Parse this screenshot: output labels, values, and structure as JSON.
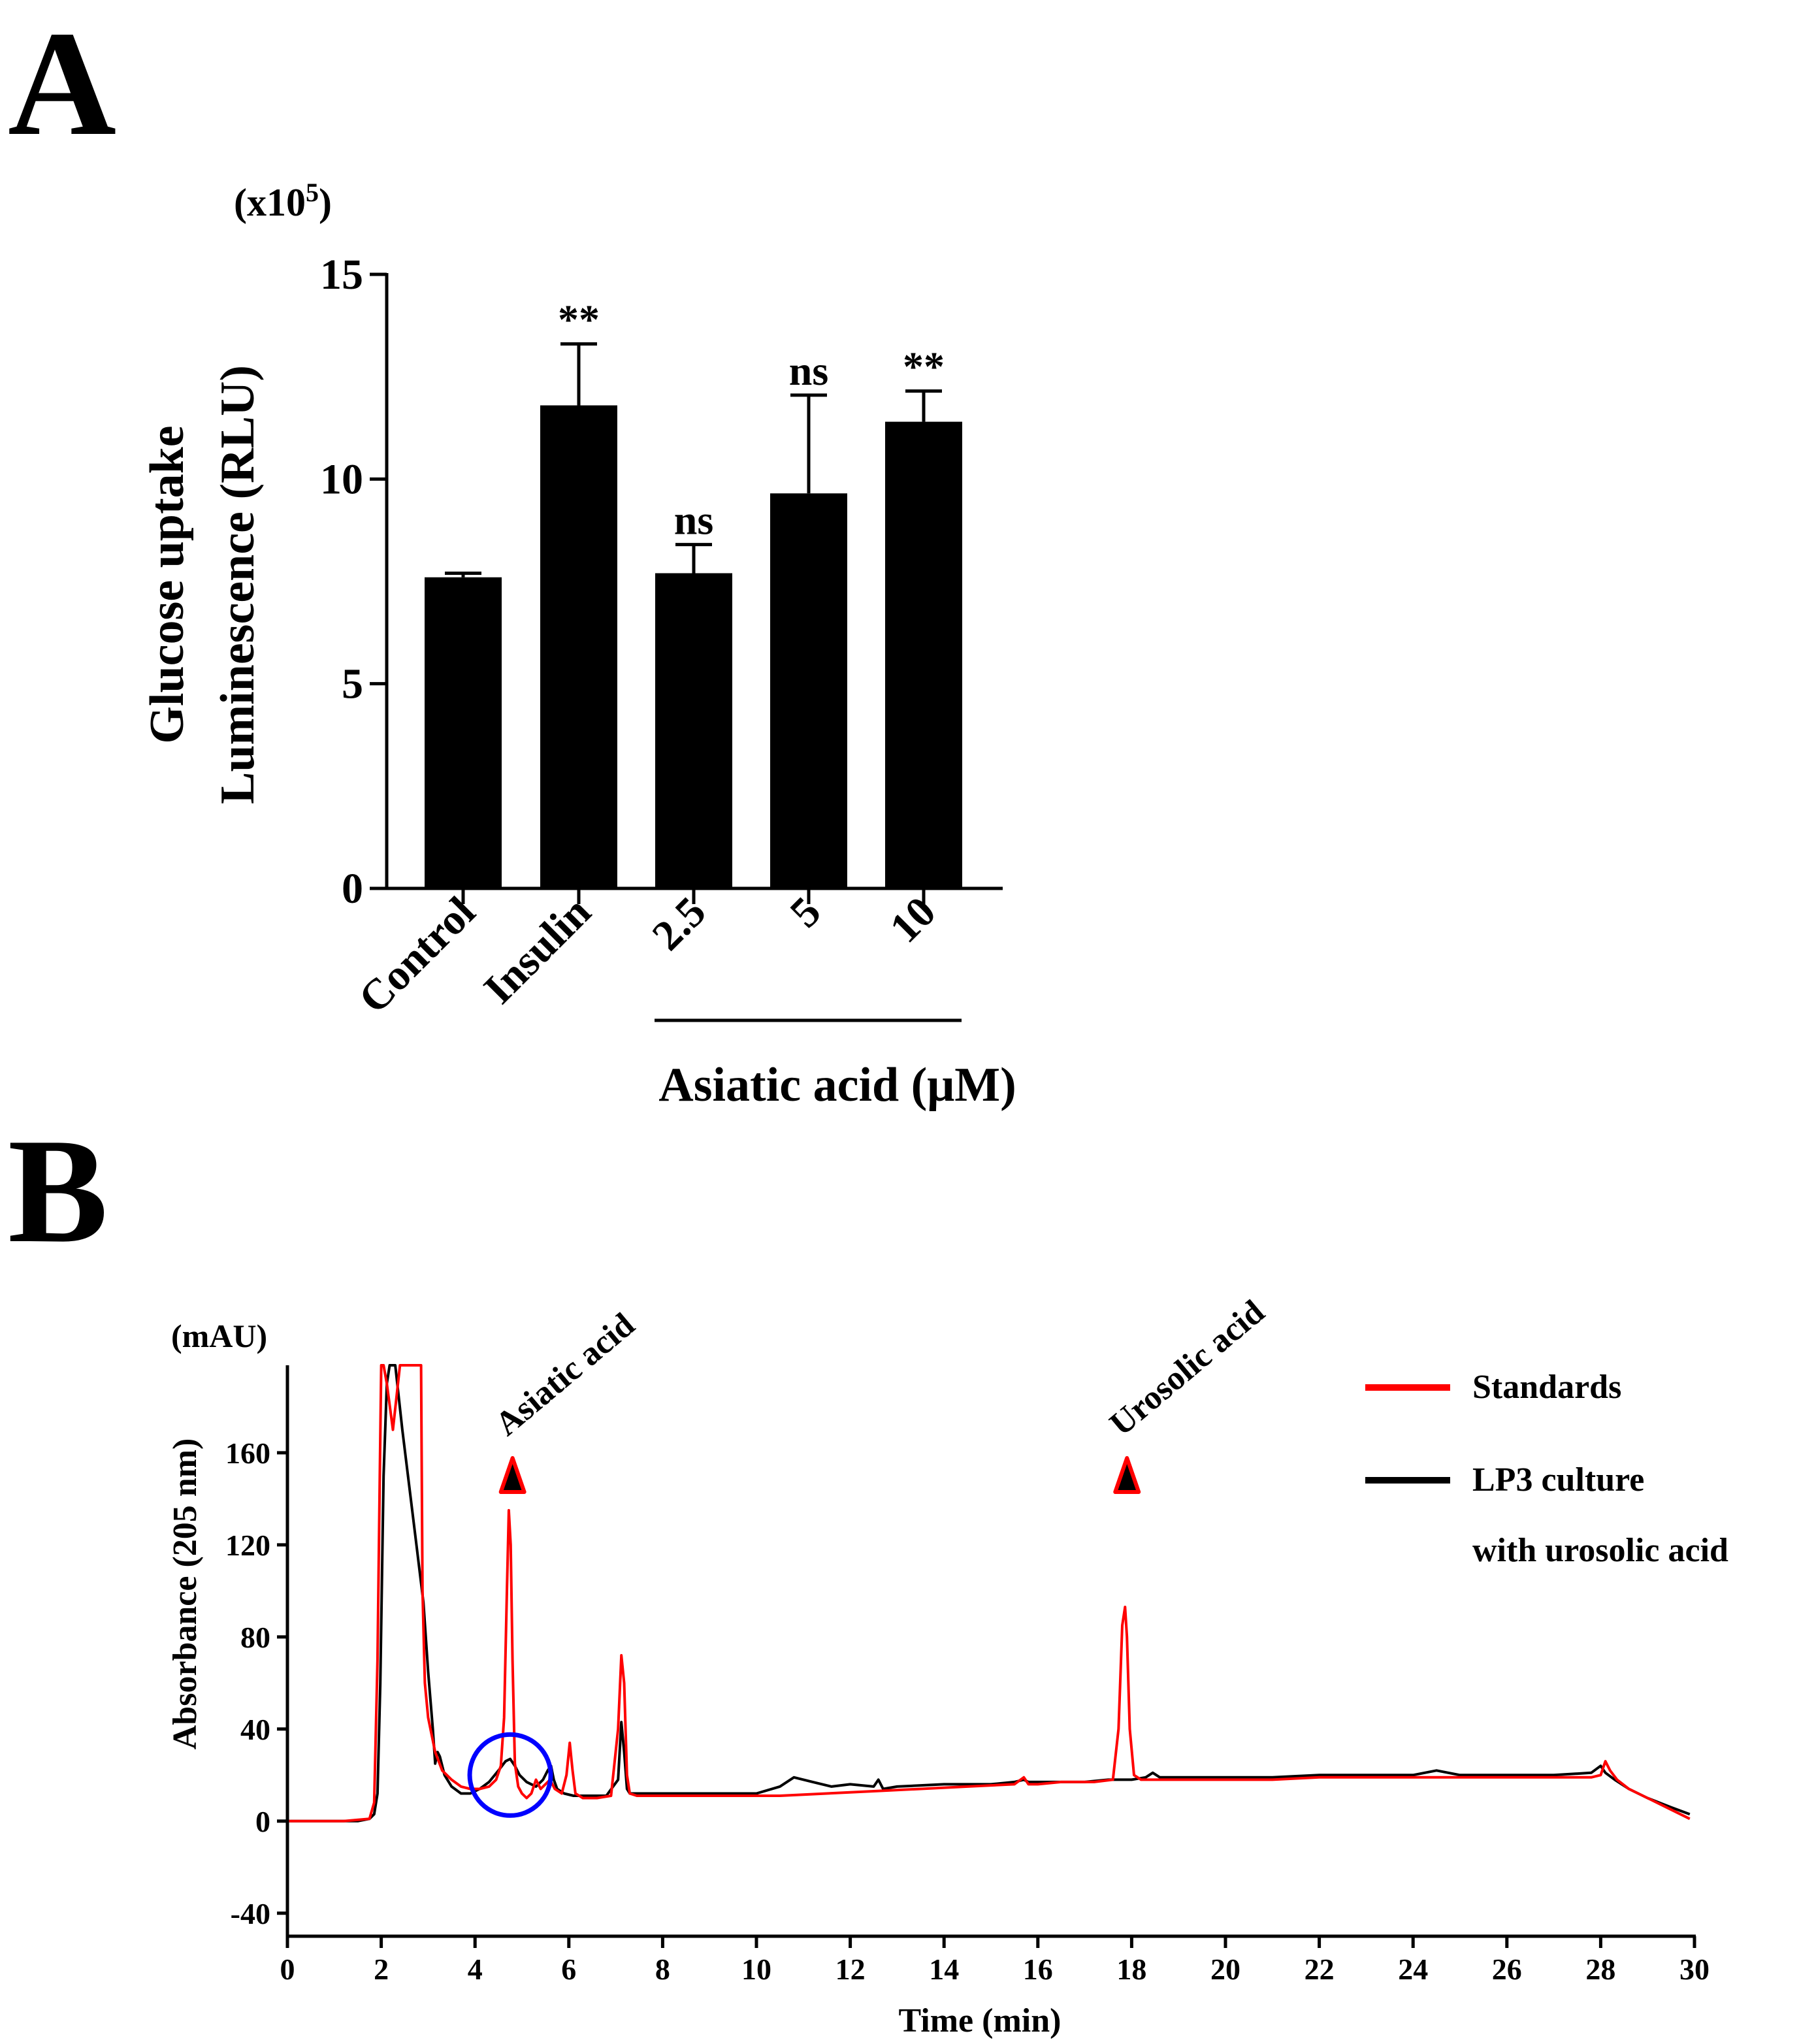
{
  "panel_labels": {
    "a": "A",
    "b": "B"
  },
  "colors": {
    "bar": "#000000",
    "standards": "#ff0000",
    "culture": "#000000",
    "circle": "#0000ff"
  },
  "chart_data": [
    {
      "type": "bar",
      "panel": "A",
      "categories": [
        "Control",
        "Insulin",
        "2.5",
        "5",
        "10"
      ],
      "values": [
        7.6,
        11.8,
        7.7,
        9.65,
        11.4
      ],
      "errors": [
        0.1,
        1.5,
        0.7,
        2.4,
        0.75
      ],
      "significance": [
        "",
        "**",
        "ns",
        "ns",
        "**"
      ],
      "ylabel_line1": "Glucose uptake",
      "ylabel_line2": "Luminescence (RLU)",
      "y_multiplier_base": "(x10",
      "y_multiplier_exp": "5",
      "y_multiplier_close": ")",
      "ylim": [
        0,
        15
      ],
      "yticks": [
        0,
        5,
        10,
        15
      ],
      "group_label": "Asiatic acid (μM)",
      "group_categories": [
        "2.5",
        "5",
        "10"
      ]
    },
    {
      "type": "line",
      "panel": "B",
      "ylabel": "Absorbance (205 nm)",
      "yunit": "(mAU)",
      "xlabel": "Time (min)",
      "xlim": [
        0,
        30
      ],
      "ylim": [
        -50,
        198
      ],
      "xticks": [
        0,
        2,
        4,
        6,
        8,
        10,
        12,
        14,
        16,
        18,
        20,
        22,
        24,
        26,
        28,
        30
      ],
      "yticks": [
        -40,
        0,
        40,
        80,
        120,
        160
      ],
      "legend_position": "top-right",
      "series": [
        {
          "name": "Standards",
          "color": "#ff0000",
          "x": [
            0,
            1.2,
            1.75,
            1.85,
            1.92,
            1.97,
            2.0,
            2.05,
            2.12,
            2.25,
            2.4,
            2.55,
            2.65,
            2.75,
            2.8,
            2.85,
            2.88,
            2.93,
            3.0,
            3.15,
            3.3,
            3.5,
            3.7,
            3.9,
            4.1,
            4.3,
            4.45,
            4.55,
            4.62,
            4.68,
            4.72,
            4.76,
            4.8,
            4.85,
            4.92,
            5.0,
            5.1,
            5.2,
            5.3,
            5.4,
            5.5,
            5.6,
            5.7,
            5.85,
            5.95,
            6.02,
            6.08,
            6.14,
            6.3,
            6.6,
            6.9,
            7.05,
            7.12,
            7.18,
            7.24,
            7.3,
            7.45,
            7.8,
            8.5,
            9.5,
            10.5,
            11.5,
            12.5,
            13.5,
            14.5,
            15.5,
            15.7,
            15.8,
            16.0,
            16.5,
            17.2,
            17.6,
            17.72,
            17.8,
            17.86,
            17.9,
            17.96,
            18.05,
            18.2,
            18.5,
            19,
            20,
            21,
            22,
            23,
            24,
            25,
            26,
            27,
            27.8,
            28.0,
            28.1,
            28.2,
            28.35,
            28.6,
            29,
            29.5,
            29.9
          ],
          "y": [
            0,
            0,
            1,
            8,
            70,
            150,
            198,
            198,
            190,
            170,
            198,
            198,
            198,
            198,
            198,
            198,
            100,
            60,
            45,
            30,
            22,
            18,
            15,
            14,
            14,
            15,
            18,
            24,
            45,
            100,
            135,
            120,
            70,
            25,
            15,
            12,
            10,
            12,
            18,
            14,
            16,
            18,
            14,
            12,
            20,
            34,
            22,
            12,
            10,
            10,
            11,
            40,
            72,
            60,
            20,
            12,
            11,
            11,
            11,
            11,
            11,
            12,
            13,
            14,
            15,
            16,
            19,
            16,
            16,
            17,
            17,
            18,
            40,
            85,
            93,
            80,
            40,
            20,
            18,
            18,
            18,
            18,
            18,
            19,
            19,
            19,
            19,
            19,
            19,
            19,
            20,
            26,
            22,
            18,
            14,
            10,
            5,
            1
          ]
        },
        {
          "name": "LP3 culture",
          "name_line2": "with urosolic acid",
          "color": "#000000",
          "x": [
            0,
            1.5,
            1.75,
            1.85,
            1.92,
            1.98,
            2.05,
            2.12,
            2.18,
            2.3,
            2.45,
            2.6,
            2.75,
            2.9,
            3.0,
            3.1,
            3.15,
            3.2,
            3.25,
            3.35,
            3.5,
            3.7,
            3.9,
            4.1,
            4.3,
            4.5,
            4.65,
            4.75,
            4.85,
            4.95,
            5.1,
            5.3,
            5.45,
            5.55,
            5.62,
            5.68,
            5.75,
            5.9,
            6.1,
            6.4,
            6.8,
            7.05,
            7.12,
            7.18,
            7.24,
            7.3,
            7.5,
            8,
            9,
            10,
            10.5,
            10.8,
            11.2,
            11.6,
            12,
            12.5,
            12.6,
            12.7,
            13,
            14,
            15,
            15.5,
            15.7,
            15.8,
            16,
            16.5,
            17,
            17.5,
            18,
            18.3,
            18.45,
            18.6,
            19,
            20,
            21,
            22,
            23,
            24,
            24.5,
            25,
            26,
            27,
            27.8,
            28.0,
            28.1,
            28.3,
            28.6,
            29,
            29.5,
            29.9
          ],
          "y": [
            0,
            0,
            1,
            3,
            12,
            60,
            150,
            190,
            198,
            198,
            170,
            145,
            120,
            95,
            65,
            40,
            25,
            30,
            28,
            20,
            15,
            12,
            12,
            14,
            17,
            22,
            26,
            27,
            24,
            20,
            17,
            15,
            18,
            22,
            24,
            18,
            14,
            12,
            11,
            11,
            11,
            18,
            43,
            30,
            14,
            12,
            12,
            12,
            12,
            12,
            15,
            19,
            17,
            15,
            16,
            15,
            18,
            14,
            15,
            16,
            16,
            17,
            18,
            17,
            17,
            17,
            17,
            18,
            18,
            19,
            21,
            19,
            19,
            19,
            19,
            20,
            20,
            20,
            22,
            20,
            20,
            20,
            21,
            24,
            21,
            18,
            14,
            10,
            6,
            3
          ]
        }
      ],
      "annotations": [
        {
          "label": "Asiatic acid",
          "x": 4.8
        },
        {
          "label": "Urosolic acid",
          "x": 17.9
        }
      ],
      "circle_center": {
        "x": 4.75,
        "y": 20
      }
    }
  ]
}
